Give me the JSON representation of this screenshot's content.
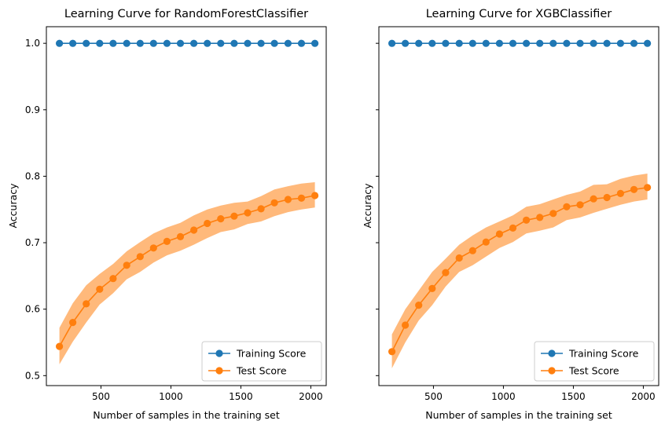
{
  "chart_data": [
    {
      "type": "line",
      "title": "Learning Curve for RandomForestClassifier",
      "xlabel": "Number of samples in the training set",
      "ylabel": "Accuracy",
      "xlim": [
        110,
        2110
      ],
      "ylim": [
        0.485,
        1.025
      ],
      "xticks": [
        500,
        1000,
        1500,
        2000
      ],
      "yticks": [
        0.5,
        0.6,
        0.7,
        0.8,
        0.9,
        1.0
      ],
      "show_ytick_labels": true,
      "grid": false,
      "legend_position": "lower right",
      "x": [
        203,
        299,
        395,
        491,
        587,
        684,
        780,
        876,
        972,
        1068,
        1164,
        1260,
        1356,
        1452,
        1548,
        1644,
        1740,
        1837,
        1933,
        2029
      ],
      "series": [
        {
          "name": "Training Score",
          "color": "#1f77b4",
          "values": [
            1.0,
            1.0,
            1.0,
            1.0,
            1.0,
            1.0,
            1.0,
            1.0,
            1.0,
            1.0,
            1.0,
            1.0,
            1.0,
            1.0,
            1.0,
            1.0,
            1.0,
            1.0,
            1.0,
            1.0
          ]
        },
        {
          "name": "Test Score",
          "color": "#ff7f0e",
          "values": [
            0.544,
            0.58,
            0.608,
            0.63,
            0.646,
            0.666,
            0.679,
            0.692,
            0.702,
            0.709,
            0.719,
            0.729,
            0.736,
            0.74,
            0.745,
            0.751,
            0.76,
            0.765,
            0.767,
            0.771
          ],
          "band_lower": [
            0.517,
            0.551,
            0.58,
            0.607,
            0.624,
            0.645,
            0.656,
            0.67,
            0.681,
            0.688,
            0.697,
            0.707,
            0.716,
            0.72,
            0.728,
            0.732,
            0.74,
            0.746,
            0.75,
            0.753
          ],
          "band_upper": [
            0.572,
            0.609,
            0.636,
            0.653,
            0.668,
            0.687,
            0.701,
            0.714,
            0.723,
            0.73,
            0.741,
            0.75,
            0.756,
            0.76,
            0.762,
            0.77,
            0.78,
            0.785,
            0.789,
            0.791
          ]
        }
      ]
    },
    {
      "type": "line",
      "title": "Learning Curve for XGBClassifier",
      "xlabel": "Number of samples in the training set",
      "ylabel": "Accuracy",
      "xlim": [
        110,
        2110
      ],
      "ylim": [
        0.485,
        1.025
      ],
      "xticks": [
        500,
        1000,
        1500,
        2000
      ],
      "yticks": [
        0.5,
        0.6,
        0.7,
        0.8,
        0.9,
        1.0
      ],
      "show_ytick_labels": false,
      "grid": false,
      "legend_position": "lower right",
      "x": [
        203,
        299,
        395,
        491,
        587,
        684,
        780,
        876,
        972,
        1068,
        1164,
        1260,
        1356,
        1452,
        1548,
        1644,
        1740,
        1837,
        1933,
        2029
      ],
      "series": [
        {
          "name": "Training Score",
          "color": "#1f77b4",
          "values": [
            1.0,
            1.0,
            1.0,
            1.0,
            1.0,
            1.0,
            1.0,
            1.0,
            1.0,
            1.0,
            1.0,
            1.0,
            1.0,
            1.0,
            1.0,
            1.0,
            1.0,
            1.0,
            1.0,
            1.0
          ]
        },
        {
          "name": "Test Score",
          "color": "#ff7f0e",
          "values": [
            0.536,
            0.576,
            0.606,
            0.631,
            0.655,
            0.677,
            0.688,
            0.701,
            0.713,
            0.722,
            0.734,
            0.738,
            0.744,
            0.754,
            0.757,
            0.766,
            0.768,
            0.774,
            0.78,
            0.783
          ],
          "band_lower": [
            0.511,
            0.55,
            0.583,
            0.606,
            0.634,
            0.656,
            0.666,
            0.679,
            0.692,
            0.701,
            0.714,
            0.718,
            0.723,
            0.734,
            0.738,
            0.745,
            0.751,
            0.757,
            0.762,
            0.765
          ],
          "band_upper": [
            0.562,
            0.6,
            0.628,
            0.656,
            0.676,
            0.697,
            0.711,
            0.723,
            0.732,
            0.741,
            0.754,
            0.758,
            0.765,
            0.772,
            0.777,
            0.787,
            0.788,
            0.796,
            0.801,
            0.804
          ]
        }
      ]
    }
  ]
}
